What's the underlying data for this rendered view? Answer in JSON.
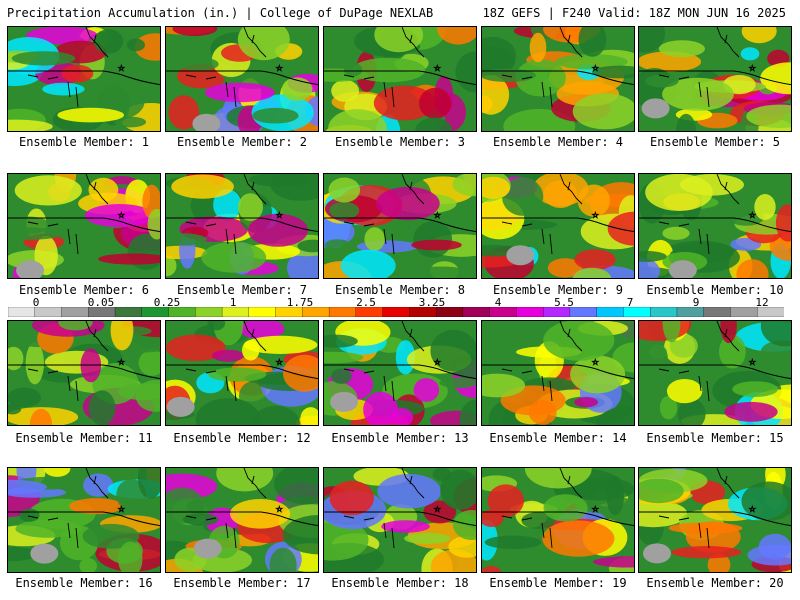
{
  "header": {
    "title": "Precipitation Accumulation (in.) | College of DuPage NEXLAB",
    "run_info": "18Z GEFS | F240 Valid: 18Z MON JUN 16 2025"
  },
  "members": [
    "Ensemble Member: 1",
    "Ensemble Member: 2",
    "Ensemble Member: 3",
    "Ensemble Member: 4",
    "Ensemble Member: 5",
    "Ensemble Member: 6",
    "Ensemble Member: 7",
    "Ensemble Member: 8",
    "Ensemble Member: 9",
    "Ensemble Member: 10",
    "Ensemble Member: 11",
    "Ensemble Member: 12",
    "Ensemble Member: 13",
    "Ensemble Member: 14",
    "Ensemble Member: 15",
    "Ensemble Member: 16",
    "Ensemble Member: 17",
    "Ensemble Member: 18",
    "Ensemble Member: 19",
    "Ensemble Member: 20"
  ],
  "colorbar": {
    "labels": [
      "0",
      "0.05",
      "0.25",
      "1",
      "1.75",
      "2.5",
      "3.25",
      "4",
      "5.5",
      "7",
      "9",
      "12"
    ],
    "colors": [
      "#e6e6e6",
      "#c8c8c8",
      "#a0a0a0",
      "#787878",
      "#3c783c",
      "#1e9632",
      "#50b428",
      "#8cd228",
      "#dcf01e",
      "#ffff00",
      "#ffd200",
      "#ffa500",
      "#ff7800",
      "#ff3c00",
      "#e60000",
      "#b40000",
      "#8c0014",
      "#a0005a",
      "#c8008c",
      "#e600dc",
      "#b428ff",
      "#6478ff",
      "#00c8ff",
      "#00ffff",
      "#28c8c8",
      "#50a0a0",
      "#787878",
      "#a0a0a0",
      "#c8c8c8"
    ]
  }
}
